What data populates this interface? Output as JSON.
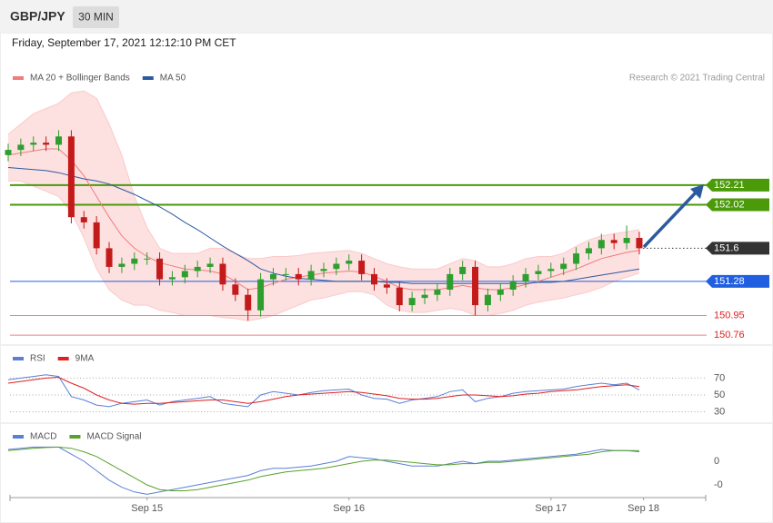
{
  "header": {
    "symbol": "GBP/JPY",
    "interval": "30 MIN",
    "date": "Friday, September 17, 2021 12:12:10 PM CET"
  },
  "chart_data": [
    {
      "type": "candlestick",
      "credit": "Research © 2021 Trading Central",
      "up_color": "#2e9e2e",
      "down_color": "#c41a1a",
      "band_color": "#fde0e0",
      "x": [
        -16.5,
        -15,
        -13.5,
        -12,
        -10.5,
        -9,
        -7.5,
        -6,
        -4.5,
        -3,
        -1.5,
        0,
        1.5,
        3,
        4.5,
        6,
        7.5,
        9,
        10.5,
        12,
        13.5,
        15,
        16.5,
        18,
        19.5,
        21,
        22.5,
        24,
        25.5,
        27,
        28.5,
        30,
        31.5,
        33,
        34.5,
        36,
        37.5,
        39,
        40.5,
        42,
        43.5,
        45,
        46.5,
        48,
        49.5,
        51,
        52.5,
        54,
        55.5,
        57,
        58.5
      ],
      "open": [
        152.5,
        152.55,
        152.6,
        152.62,
        152.6,
        152.68,
        151.9,
        151.85,
        151.6,
        151.42,
        151.45,
        151.5,
        151.5,
        151.3,
        151.32,
        151.38,
        151.42,
        151.45,
        151.25,
        151.15,
        151.0,
        151.3,
        151.35,
        151.35,
        151.3,
        151.38,
        151.4,
        151.45,
        151.48,
        151.35,
        151.25,
        151.22,
        151.05,
        151.12,
        151.15,
        151.2,
        151.35,
        151.42,
        151.05,
        151.15,
        151.2,
        151.28,
        151.35,
        151.38,
        151.4,
        151.45,
        151.55,
        151.6,
        151.68,
        151.65,
        151.7
      ],
      "high": [
        152.61,
        152.66,
        152.68,
        152.68,
        152.74,
        152.74,
        151.96,
        151.91,
        151.66,
        151.51,
        151.56,
        151.56,
        151.56,
        151.38,
        151.44,
        151.48,
        151.51,
        151.51,
        151.31,
        151.21,
        151.36,
        151.41,
        151.41,
        151.41,
        151.44,
        151.46,
        151.51,
        151.54,
        151.54,
        151.41,
        151.31,
        151.28,
        151.18,
        151.21,
        151.26,
        151.41,
        151.48,
        151.48,
        151.21,
        151.26,
        151.34,
        151.41,
        151.44,
        151.46,
        151.51,
        151.61,
        151.66,
        151.74,
        151.74,
        151.82,
        151.76
      ],
      "low": [
        152.44,
        152.49,
        152.54,
        152.54,
        152.54,
        151.84,
        151.79,
        151.54,
        151.36,
        151.36,
        151.39,
        151.44,
        151.24,
        151.24,
        151.26,
        151.32,
        151.36,
        151.19,
        151.09,
        150.9,
        150.94,
        151.24,
        151.29,
        151.24,
        151.24,
        151.32,
        151.34,
        151.39,
        151.29,
        151.19,
        151.16,
        150.99,
        150.99,
        151.06,
        151.09,
        151.14,
        151.29,
        150.95,
        150.99,
        151.09,
        151.14,
        151.22,
        151.29,
        151.32,
        151.34,
        151.39,
        151.49,
        151.54,
        151.59,
        151.59,
        151.54
      ],
      "close": [
        152.55,
        152.6,
        152.62,
        152.6,
        152.68,
        151.9,
        151.85,
        151.6,
        151.42,
        151.45,
        151.5,
        151.5,
        151.3,
        151.32,
        151.38,
        151.42,
        151.45,
        151.25,
        151.15,
        151.0,
        151.3,
        151.35,
        151.35,
        151.3,
        151.38,
        151.4,
        151.45,
        151.48,
        151.35,
        151.25,
        151.22,
        151.05,
        151.12,
        151.15,
        151.2,
        151.35,
        151.42,
        151.05,
        151.15,
        151.2,
        151.28,
        151.35,
        151.38,
        151.4,
        151.45,
        151.55,
        151.6,
        151.68,
        151.65,
        151.7,
        151.6
      ],
      "series": [
        {
          "name": "MA 20 + Bollinger Bands",
          "color": "#f07c7c",
          "values": [
            152.5,
            152.52,
            152.54,
            152.56,
            152.56,
            152.45,
            152.3,
            152.1,
            151.9,
            151.72,
            151.6,
            151.52,
            151.46,
            151.43,
            151.4,
            151.39,
            151.38,
            151.35,
            151.28,
            151.2,
            151.22,
            151.26,
            151.3,
            151.32,
            151.34,
            151.36,
            151.37,
            151.38,
            151.37,
            151.33,
            151.28,
            151.22,
            151.2,
            151.2,
            151.2,
            151.22,
            151.24,
            151.22,
            151.2,
            151.2,
            151.22,
            151.25,
            151.28,
            151.32,
            151.36,
            151.4,
            151.45,
            151.5,
            151.53,
            151.56,
            151.58
          ],
          "upper": [
            152.7,
            152.8,
            152.9,
            152.95,
            153.0,
            153.1,
            153.12,
            153.05,
            152.8,
            152.5,
            152.1,
            151.8,
            151.6,
            151.55,
            151.55,
            151.55,
            151.6,
            151.6,
            151.55,
            151.5,
            151.5,
            151.52,
            151.52,
            151.53,
            151.55,
            151.56,
            151.57,
            151.58,
            151.55,
            151.5,
            151.45,
            151.42,
            151.4,
            151.4,
            151.4,
            151.45,
            151.5,
            151.48,
            151.42,
            151.42,
            151.45,
            151.5,
            151.52,
            151.52,
            151.55,
            151.62,
            151.68,
            151.72,
            151.74,
            151.76,
            151.78
          ],
          "lower": [
            152.25,
            152.25,
            152.2,
            152.15,
            152.1,
            151.95,
            151.7,
            151.4,
            151.2,
            151.1,
            151.05,
            151.05,
            151.0,
            150.98,
            150.95,
            150.95,
            150.95,
            150.93,
            150.92,
            150.9,
            150.92,
            150.95,
            151.0,
            151.05,
            151.1,
            151.12,
            151.15,
            151.18,
            151.18,
            151.15,
            151.05,
            151.0,
            150.98,
            150.98,
            151.0,
            151.02,
            151.0,
            150.95,
            150.95,
            150.97,
            151.0,
            151.05,
            151.08,
            151.1,
            151.12,
            151.15,
            151.18,
            151.22,
            151.28,
            151.32,
            151.36
          ]
        },
        {
          "name": "MA 50",
          "color": "#2c5aa0",
          "values": [
            152.38,
            152.37,
            152.36,
            152.35,
            152.33,
            152.3,
            152.27,
            152.25,
            152.22,
            152.17,
            152.12,
            152.06,
            152.0,
            151.93,
            151.85,
            151.78,
            151.7,
            151.62,
            151.55,
            151.48,
            151.4,
            151.36,
            151.33,
            151.31,
            151.3,
            151.29,
            151.28,
            151.28,
            151.28,
            151.28,
            151.27,
            151.27,
            151.26,
            151.26,
            151.26,
            151.26,
            151.26,
            151.26,
            151.26,
            151.26,
            151.26,
            151.26,
            151.27,
            151.27,
            151.28,
            151.3,
            151.32,
            151.34,
            151.36,
            151.38,
            151.4
          ]
        }
      ],
      "levels": [
        {
          "value": 152.21,
          "color": "#4a9a0a",
          "style": "tag"
        },
        {
          "value": 152.02,
          "color": "#4a9a0a",
          "style": "tag"
        },
        {
          "value": 151.6,
          "color": "#333333",
          "style": "current"
        },
        {
          "value": 151.28,
          "color": "#2060e0",
          "style": "tag"
        },
        {
          "value": 150.95,
          "color": "#f08080",
          "style": "text"
        },
        {
          "value": 150.76,
          "color": "#f08080",
          "style": "text"
        }
      ],
      "xlim": [
        -16.5,
        66.5
      ],
      "ylim": [
        150.7,
        153.2
      ]
    },
    {
      "type": "line",
      "series": [
        {
          "name": "RSI",
          "color": "#5b7fd6",
          "values": [
            68,
            70,
            72,
            74,
            72,
            48,
            44,
            38,
            36,
            40,
            42,
            44,
            38,
            42,
            44,
            46,
            48,
            40,
            38,
            36,
            50,
            54,
            52,
            50,
            53,
            55,
            56,
            57,
            50,
            46,
            45,
            40,
            44,
            46,
            48,
            54,
            56,
            42,
            46,
            48,
            52,
            54,
            55,
            56,
            57,
            60,
            62,
            64,
            62,
            64,
            56
          ]
        },
        {
          "name": "9MA",
          "color": "#e02020",
          "values": [
            64,
            66,
            68,
            70,
            71,
            64,
            58,
            50,
            44,
            40,
            39,
            40,
            40,
            41,
            42,
            43,
            44,
            44,
            42,
            40,
            42,
            45,
            48,
            50,
            51,
            52,
            53,
            54,
            53,
            51,
            49,
            46,
            45,
            45,
            46,
            48,
            50,
            50,
            49,
            48,
            49,
            51,
            52,
            54,
            55,
            56,
            58,
            60,
            61,
            62,
            60
          ]
        }
      ],
      "ylim": [
        20,
        105
      ],
      "yticks": [
        30,
        50,
        70
      ],
      "grid": true
    },
    {
      "type": "line",
      "series": [
        {
          "name": "MACD",
          "color": "#5b7fd6",
          "values": [
            0.05,
            0.055,
            0.06,
            0.06,
            0.06,
            0.03,
            0.0,
            -0.04,
            -0.08,
            -0.11,
            -0.13,
            -0.14,
            -0.13,
            -0.12,
            -0.11,
            -0.1,
            -0.09,
            -0.08,
            -0.07,
            -0.06,
            -0.04,
            -0.03,
            -0.03,
            -0.025,
            -0.02,
            -0.01,
            0.0,
            0.02,
            0.015,
            0.01,
            0.0,
            -0.01,
            -0.02,
            -0.02,
            -0.02,
            -0.01,
            0.0,
            -0.01,
            0.0,
            0.0,
            0.005,
            0.01,
            0.015,
            0.02,
            0.025,
            0.03,
            0.04,
            0.05,
            0.045,
            0.045,
            0.04
          ]
        },
        {
          "name": "MACD Signal",
          "color": "#5aa02c",
          "values": [
            0.045,
            0.05,
            0.055,
            0.058,
            0.06,
            0.055,
            0.04,
            0.02,
            -0.01,
            -0.04,
            -0.07,
            -0.1,
            -0.12,
            -0.125,
            -0.125,
            -0.12,
            -0.11,
            -0.1,
            -0.09,
            -0.08,
            -0.065,
            -0.055,
            -0.045,
            -0.04,
            -0.035,
            -0.03,
            -0.02,
            -0.01,
            0.0,
            0.005,
            0.005,
            0.0,
            -0.005,
            -0.01,
            -0.015,
            -0.015,
            -0.01,
            -0.01,
            -0.005,
            -0.005,
            0.0,
            0.005,
            0.01,
            0.015,
            0.02,
            0.025,
            0.03,
            0.04,
            0.045,
            0.045,
            0.045
          ]
        }
      ],
      "ylim": [
        -0.15,
        0.15
      ],
      "yticks": [
        0,
        {
          "value": -0.1,
          "label": "-0"
        }
      ],
      "xticks": [
        {
          "value": 0,
          "label": "Sep 15"
        },
        {
          "value": 24,
          "label": "Sep 16"
        },
        {
          "value": 48,
          "label": "Sep 17"
        },
        {
          "value": 59,
          "label": "Sep 18"
        }
      ]
    }
  ]
}
